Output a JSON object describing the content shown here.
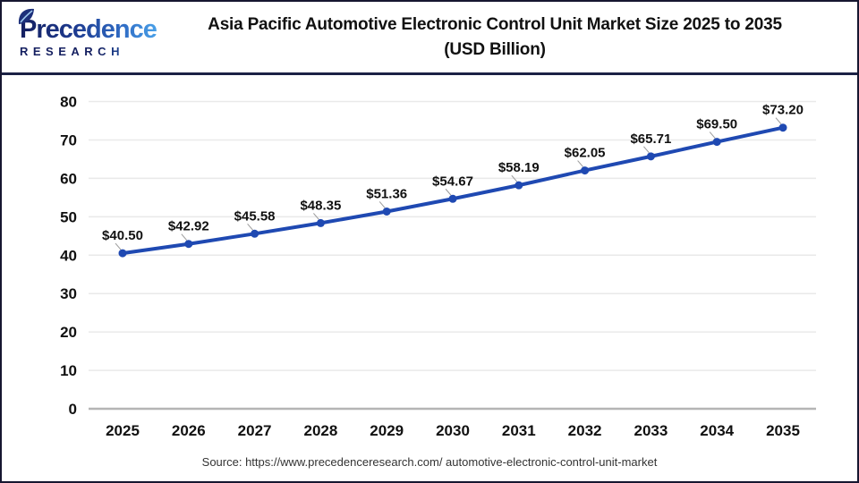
{
  "header": {
    "logo": {
      "brand": "Precedence",
      "subtext": "RESEARCH"
    },
    "title_line1": "Asia Pacific Automotive Electronic Control Unit Market Size 2025 to 2035",
    "title_line2": "(USD Billion)"
  },
  "chart_data": {
    "type": "line",
    "title": "Asia Pacific Automotive Electronic Control Unit Market Size 2025 to 2035 (USD Billion)",
    "categories": [
      "2025",
      "2026",
      "2027",
      "2028",
      "2029",
      "2030",
      "2031",
      "2032",
      "2033",
      "2034",
      "2035"
    ],
    "values": [
      40.5,
      42.92,
      45.58,
      48.35,
      51.36,
      54.67,
      58.19,
      62.05,
      65.71,
      69.5,
      73.2
    ],
    "point_labels": [
      "$40.50",
      "$42.92",
      "$45.58",
      "$48.35",
      "$51.36",
      "$54.67",
      "$58.19",
      "$62.05",
      "$65.71",
      "$69.50",
      "$73.20"
    ],
    "xlabel": "",
    "ylabel": "",
    "ylim": [
      0,
      80
    ],
    "yticks": [
      0,
      10,
      20,
      30,
      40,
      50,
      60,
      70,
      80
    ],
    "grid": true,
    "legend": "none",
    "line_color": "#1f49b2"
  },
  "footer": {
    "source": "Source: https://www.precedenceresearch.com/ automotive-electronic-control-unit-market"
  },
  "colors": {
    "header_rule": "#1b2145",
    "page_border": "#161630",
    "grid_line": "#e9e9e9",
    "axis_line": "#b5b5b5",
    "leader_line": "#9a9a9a",
    "text": "#111111"
  }
}
